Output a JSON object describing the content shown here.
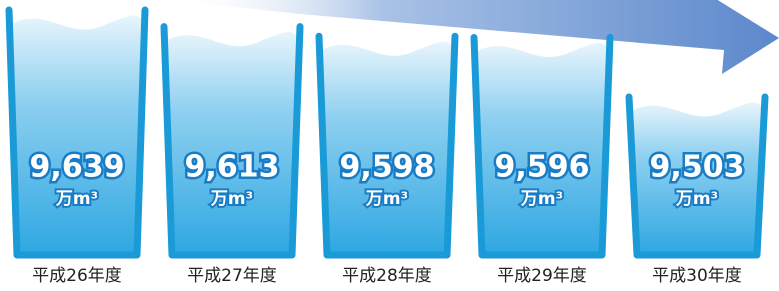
{
  "chart_data": {
    "type": "glass",
    "categories": [
      "平成26年度",
      "平成27年度",
      "平成28年度",
      "平成29年度",
      "平成30年度"
    ],
    "values": [
      9639,
      9613,
      9598,
      9596,
      9503
    ],
    "value_labels": [
      "9,639",
      "9,613",
      "9,598",
      "9,596",
      "9,503"
    ],
    "unit": "万m³",
    "color": "#1a9ad6"
  }
}
